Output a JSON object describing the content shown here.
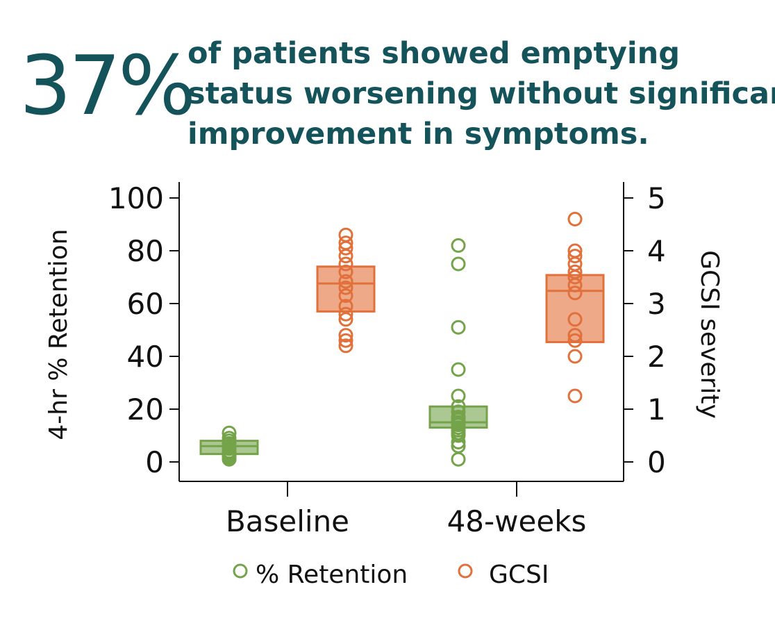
{
  "headline": {
    "stat": "37%",
    "line1": "of patients showed emptying",
    "line2": "status worsening without significant",
    "line3": "improvement in symptoms."
  },
  "colors": {
    "retention": "#74a34a",
    "gcsi": "#e2703a",
    "headline": "#14535a"
  },
  "chart_data": {
    "type": "box+scatter",
    "categories": [
      "Baseline",
      "48-weeks"
    ],
    "ylabel": "4-hr % Retention",
    "y2label": "GCSI severity",
    "ylim": [
      0,
      100
    ],
    "y2lim": [
      0,
      5
    ],
    "yticks": [
      "0",
      "20",
      "40",
      "60",
      "80",
      "100"
    ],
    "y2ticks": [
      "0",
      "1",
      "2",
      "3",
      "4",
      "5"
    ],
    "legend": [
      "% Retention",
      "GCSI"
    ],
    "series": [
      {
        "name": "% Retention",
        "axis": "left",
        "boxes": [
          {
            "category": "Baseline",
            "q1": 3,
            "median": 6,
            "q3": 8
          },
          {
            "category": "48-weeks",
            "q1": 13,
            "median": 15,
            "q3": 21
          }
        ],
        "points": [
          [
            11,
            9,
            8,
            7,
            6,
            5,
            4,
            3.5,
            3,
            2.5,
            2,
            1.5,
            1
          ],
          [
            82,
            75,
            51,
            35,
            25,
            21,
            19,
            17,
            16,
            15,
            14,
            13,
            12,
            11,
            10,
            7.5,
            6,
            1
          ]
        ]
      },
      {
        "name": "GCSI",
        "axis": "right",
        "boxes": [
          {
            "category": "Baseline",
            "q1": 2.85,
            "median": 3.38,
            "q3": 3.7
          },
          {
            "category": "48-weeks",
            "q1": 2.27,
            "median": 3.24,
            "q3": 3.54
          }
        ],
        "points": [
          [
            4.3,
            4.15,
            4.05,
            3.9,
            3.75,
            3.6,
            3.42,
            3.3,
            3.15,
            2.95,
            2.8,
            2.7,
            2.4,
            2.3,
            2.2
          ],
          [
            4.6,
            4.0,
            3.9,
            3.75,
            3.6,
            3.5,
            3.35,
            3.2,
            2.7,
            2.4,
            2.3,
            2.0,
            1.25
          ]
        ]
      }
    ]
  }
}
